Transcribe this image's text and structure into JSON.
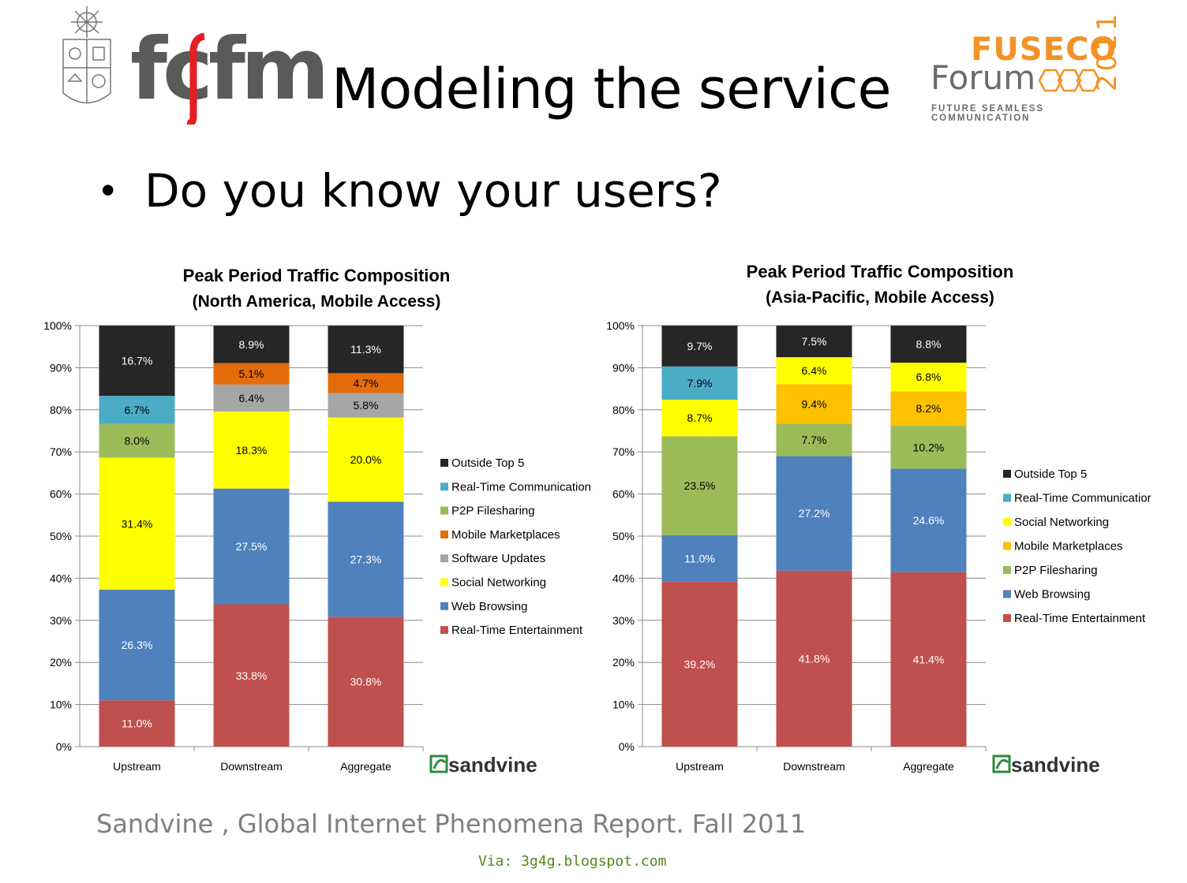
{
  "slide": {
    "title": "Modeling the service",
    "bullet": "Do you know your users?",
    "source": "Sandvine ,  Global Internet Phenomena Report. Fall 2011",
    "via": "Via: 3g4g.blogspot.com"
  },
  "logos": {
    "left": {
      "text": "fcfm",
      "color": "#5a5a5a",
      "accent": "#e31e24"
    },
    "right": {
      "top": "FUSECO",
      "word": "Forum",
      "year": "2011",
      "tagline": "FUTURE SEAMLESS COMMUNICATION",
      "accent": "#f39224"
    }
  },
  "watermark": "sandvine",
  "colors": {
    "Outside Top 5": "#262626",
    "Real-Time Communications": "#4bacc6",
    "P2P Filesharing": "#9bbb59",
    "Mobile Marketplaces_na": "#e46c0a",
    "Mobile Marketplaces_ap": "#ffc000",
    "Software Updates": "#a6a6a6",
    "Social Networking": "#ffff00",
    "Web Browsing": "#4f81bd",
    "Real-Time Entertainment": "#c0504d"
  },
  "chart_data": [
    {
      "type": "bar",
      "stacked": true,
      "title": "Peak Period Traffic Composition",
      "subtitle": "(North America, Mobile  Access)",
      "categories": [
        "Upstream",
        "Downstream",
        "Aggregate"
      ],
      "ylim": [
        0,
        100
      ],
      "yticks": [
        "0%",
        "10%",
        "20%",
        "30%",
        "40%",
        "50%",
        "60%",
        "70%",
        "80%",
        "90%",
        "100%"
      ],
      "grid": true,
      "legend_position": "right",
      "legend": [
        "Outside Top 5",
        "Real-Time Communications",
        "P2P Filesharing",
        "Mobile Marketplaces",
        "Software Updates",
        "Social Networking",
        "Web Browsing",
        "Real-Time Entertainment"
      ],
      "series": [
        {
          "name": "Real-Time Entertainment",
          "color": "#c0504d",
          "values": [
            11.0,
            33.8,
            30.8
          ],
          "labels": [
            "11.0%",
            "33.8%",
            "30.8%"
          ]
        },
        {
          "name": "Web Browsing",
          "color": "#4f81bd",
          "values": [
            26.3,
            27.5,
            27.3
          ],
          "labels": [
            "26.3%",
            "27.5%",
            "27.3%"
          ]
        },
        {
          "name": "Social Networking",
          "color": "#ffff00",
          "values": [
            31.4,
            18.3,
            20.0
          ],
          "labels": [
            "31.4%",
            "18.3%",
            "20.0%"
          ]
        },
        {
          "name": "Software Updates",
          "color": "#a6a6a6",
          "values": [
            0,
            6.4,
            5.8
          ],
          "labels": [
            "",
            "6.4%",
            "5.8%"
          ]
        },
        {
          "name": "Mobile Marketplaces",
          "color": "#e46c0a",
          "values": [
            0,
            5.1,
            4.7
          ],
          "labels": [
            "",
            "5.1%",
            "4.7%"
          ]
        },
        {
          "name": "P2P Filesharing",
          "color": "#9bbb59",
          "values": [
            8.0,
            0,
            0
          ],
          "labels": [
            "8.0%",
            "",
            ""
          ]
        },
        {
          "name": "Real-Time Communications",
          "color": "#4bacc6",
          "values": [
            6.7,
            0,
            0
          ],
          "labels": [
            "6.7%",
            "",
            ""
          ]
        },
        {
          "name": "Outside Top 5",
          "color": "#262626",
          "values": [
            16.7,
            8.9,
            11.3
          ],
          "labels": [
            "16.7%",
            "8.9%",
            "11.3%"
          ]
        }
      ]
    },
    {
      "type": "bar",
      "stacked": true,
      "title": "Peak Period Traffic Composition",
      "subtitle": "(Asia-Pacific, Mobile Access)",
      "categories": [
        "Upstream",
        "Downstream",
        "Aggregate"
      ],
      "ylim": [
        0,
        100
      ],
      "yticks": [
        "0%",
        "10%",
        "20%",
        "30%",
        "40%",
        "50%",
        "60%",
        "70%",
        "80%",
        "90%",
        "100%"
      ],
      "grid": true,
      "legend_position": "right",
      "legend": [
        "Outside Top 5",
        "Real-Time Communicatior",
        "Social Networking",
        "Mobile Marketplaces",
        "P2P Filesharing",
        "Web Browsing",
        "Real-Time Entertainment"
      ],
      "series": [
        {
          "name": "Real-Time Entertainment",
          "color": "#c0504d",
          "values": [
            39.2,
            41.8,
            41.4
          ],
          "labels": [
            "39.2%",
            "41.8%",
            "41.4%"
          ]
        },
        {
          "name": "Web Browsing",
          "color": "#4f81bd",
          "values": [
            11.0,
            27.2,
            24.6
          ],
          "labels": [
            "11.0%",
            "27.2%",
            "24.6%"
          ]
        },
        {
          "name": "P2P Filesharing",
          "color": "#9bbb59",
          "values": [
            23.5,
            7.7,
            10.2
          ],
          "labels": [
            "23.5%",
            "7.7%",
            "10.2%"
          ]
        },
        {
          "name": "Mobile Marketplaces",
          "color": "#ffc000",
          "values": [
            0,
            9.4,
            8.2
          ],
          "labels": [
            "",
            "9.4%",
            "8.2%"
          ]
        },
        {
          "name": "Social Networking",
          "color": "#ffff00",
          "values": [
            8.7,
            6.4,
            6.8
          ],
          "labels": [
            "8.7%",
            "6.4%",
            "6.8%"
          ]
        },
        {
          "name": "Real-Time Communications",
          "color": "#4bacc6",
          "values": [
            7.9,
            0,
            0
          ],
          "labels": [
            "7.9%",
            "",
            ""
          ]
        },
        {
          "name": "Outside Top 5",
          "color": "#262626",
          "values": [
            9.7,
            7.5,
            8.8
          ],
          "labels": [
            "9.7%",
            "7.5%",
            "8.8%"
          ]
        }
      ]
    }
  ]
}
